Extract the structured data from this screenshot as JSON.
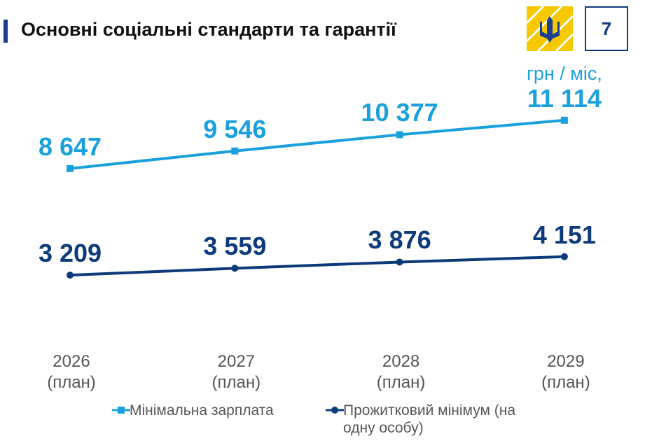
{
  "chart_data": {
    "type": "line",
    "title": "Основні соціальні стандарти та гарантії",
    "page_number": "7",
    "unit": "грн / міс,",
    "categories": [
      "2026 (план)",
      "2027 (план)",
      "2028 (план)",
      "2029 (план)"
    ],
    "series": [
      {
        "name": "Мінімальна зарплата",
        "color": "#1aa0dc",
        "marker": "square",
        "values": [
          8647,
          9546,
          10377,
          11114
        ],
        "value_labels": [
          "8 647",
          "9 546",
          "10 377",
          "11 114"
        ]
      },
      {
        "name": "Прожитковий мінімум (на одну особу)",
        "color": "#0d3b7a",
        "marker": "circle",
        "values": [
          3209,
          3559,
          3876,
          4151
        ],
        "value_labels": [
          "3 209",
          "3 559",
          "3 876",
          "4 151"
        ]
      }
    ]
  }
}
